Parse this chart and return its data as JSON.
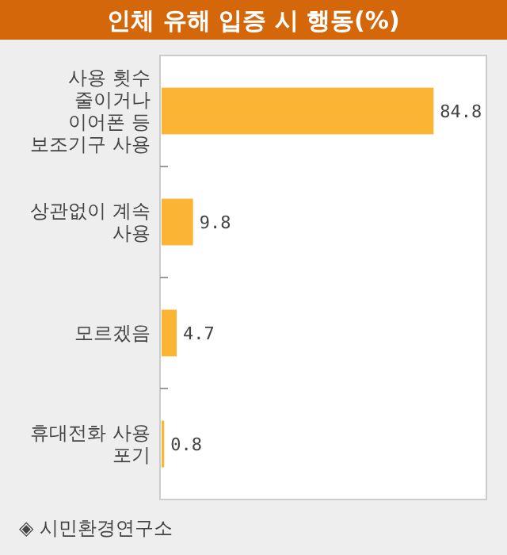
{
  "chart_data": {
    "type": "bar",
    "orientation": "horizontal",
    "title": "인체 유해 입증 시 행동(%)",
    "categories": [
      "사용 횟수 줄이거나 이어폰 등 보조기구 사용",
      "상관없이 계속 사용",
      "모르겠음",
      "휴대전화 사용 포기"
    ],
    "values": [
      84.8,
      9.8,
      4.7,
      0.8
    ],
    "color": "#fbb434",
    "data_labels": true,
    "annotations": [
      "◈ 시민환경연구소"
    ]
  }
}
